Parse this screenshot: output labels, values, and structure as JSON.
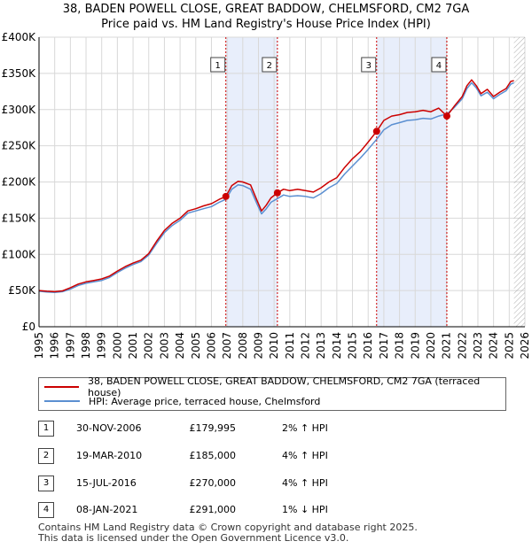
{
  "header": {
    "line1": "38, BADEN POWELL CLOSE, GREAT BADDOW, CHELMSFORD, CM2 7GA",
    "line2": "Price paid vs. HM Land Registry's House Price Index (HPI)"
  },
  "colors": {
    "price_line": "#cc0000",
    "hpi_line": "#5b8fd1",
    "band_fill": "#e8eefb",
    "marker_line": "#cc0000",
    "grid": "#d8d8d8",
    "hatch": "#999999"
  },
  "chart_data": {
    "type": "line",
    "title": "Price paid vs. HM Land Registry's House Price Index (HPI)",
    "xlabel": "",
    "ylabel": "",
    "xlim": [
      1995,
      2026
    ],
    "ylim": [
      0,
      400000
    ],
    "x_ticks": [
      "1995",
      "1996",
      "1997",
      "1998",
      "1999",
      "2000",
      "2001",
      "2002",
      "2003",
      "2004",
      "2005",
      "2006",
      "2007",
      "2008",
      "2009",
      "2010",
      "2011",
      "2012",
      "2013",
      "2014",
      "2015",
      "2016",
      "2017",
      "2018",
      "2019",
      "2020",
      "2021",
      "2022",
      "2023",
      "2024",
      "2025",
      "2026"
    ],
    "y_ticks": [
      {
        "value": 0,
        "label": "£0"
      },
      {
        "value": 50000,
        "label": "£50K"
      },
      {
        "value": 100000,
        "label": "£100K"
      },
      {
        "value": 150000,
        "label": "£150K"
      },
      {
        "value": 200000,
        "label": "£200K"
      },
      {
        "value": 250000,
        "label": "£250K"
      },
      {
        "value": 300000,
        "label": "£300K"
      },
      {
        "value": 350000,
        "label": "£350K"
      },
      {
        "value": 400000,
        "label": "£400K"
      }
    ],
    "shaded_periods": [
      [
        2006.92,
        2010.21
      ],
      [
        2016.54,
        2021.02
      ]
    ],
    "forecast_hatch_from": 2025.3,
    "series": [
      {
        "name": "38, BADEN POWELL CLOSE, GREAT BADDOW, CHELMSFORD, CM2 7GA (terraced house)",
        "color": "#cc0000",
        "points": [
          [
            1995,
            50000
          ],
          [
            1995.5,
            49000
          ],
          [
            1996,
            48500
          ],
          [
            1996.5,
            49500
          ],
          [
            1997,
            54000
          ],
          [
            1997.5,
            59000
          ],
          [
            1998,
            62000
          ],
          [
            1998.5,
            64000
          ],
          [
            1999,
            66000
          ],
          [
            1999.5,
            70000
          ],
          [
            2000,
            77000
          ],
          [
            2000.5,
            83000
          ],
          [
            2001,
            88000
          ],
          [
            2001.5,
            92000
          ],
          [
            2002,
            101000
          ],
          [
            2002.5,
            118000
          ],
          [
            2003,
            133000
          ],
          [
            2003.5,
            143000
          ],
          [
            2004,
            150000
          ],
          [
            2004.5,
            160000
          ],
          [
            2005,
            163000
          ],
          [
            2005.5,
            167000
          ],
          [
            2006,
            170000
          ],
          [
            2006.5,
            176000
          ],
          [
            2006.92,
            179995
          ],
          [
            2007.3,
            195000
          ],
          [
            2007.7,
            201000
          ],
          [
            2008,
            200000
          ],
          [
            2008.5,
            196000
          ],
          [
            2008.9,
            175000
          ],
          [
            2009.2,
            160000
          ],
          [
            2009.5,
            168000
          ],
          [
            2009.8,
            178000
          ],
          [
            2010.21,
            185000
          ],
          [
            2010.6,
            190000
          ],
          [
            2011,
            188000
          ],
          [
            2011.5,
            190000
          ],
          [
            2012,
            188000
          ],
          [
            2012.5,
            186000
          ],
          [
            2013,
            192000
          ],
          [
            2013.5,
            200000
          ],
          [
            2014,
            206000
          ],
          [
            2014.5,
            220000
          ],
          [
            2015,
            232000
          ],
          [
            2015.5,
            242000
          ],
          [
            2016,
            255000
          ],
          [
            2016.54,
            270000
          ],
          [
            2017,
            285000
          ],
          [
            2017.5,
            291000
          ],
          [
            2018,
            293000
          ],
          [
            2018.5,
            296000
          ],
          [
            2019,
            297000
          ],
          [
            2019.5,
            299000
          ],
          [
            2020,
            297000
          ],
          [
            2020.5,
            302000
          ],
          [
            2021.02,
            291000
          ],
          [
            2021.5,
            305000
          ],
          [
            2022,
            318000
          ],
          [
            2022.3,
            333000
          ],
          [
            2022.6,
            341000
          ],
          [
            2022.9,
            333000
          ],
          [
            2023.2,
            322000
          ],
          [
            2023.6,
            328000
          ],
          [
            2024,
            318000
          ],
          [
            2024.4,
            324000
          ],
          [
            2024.8,
            329000
          ],
          [
            2025.1,
            339000
          ],
          [
            2025.3,
            340000
          ]
        ]
      },
      {
        "name": "HPI: Average price, terraced house, Chelmsford",
        "color": "#5b8fd1",
        "points": [
          [
            1995,
            49000
          ],
          [
            1995.5,
            48000
          ],
          [
            1996,
            47500
          ],
          [
            1996.5,
            48500
          ],
          [
            1997,
            52000
          ],
          [
            1997.5,
            57000
          ],
          [
            1998,
            60000
          ],
          [
            1998.5,
            62000
          ],
          [
            1999,
            64000
          ],
          [
            1999.5,
            68000
          ],
          [
            2000,
            75000
          ],
          [
            2000.5,
            81000
          ],
          [
            2001,
            86000
          ],
          [
            2001.5,
            90000
          ],
          [
            2002,
            99000
          ],
          [
            2002.5,
            115000
          ],
          [
            2003,
            130000
          ],
          [
            2003.5,
            140000
          ],
          [
            2004,
            147000
          ],
          [
            2004.5,
            157000
          ],
          [
            2005,
            160000
          ],
          [
            2005.5,
            163000
          ],
          [
            2006,
            166000
          ],
          [
            2006.5,
            172000
          ],
          [
            2006.92,
            176000
          ],
          [
            2007.3,
            190000
          ],
          [
            2007.7,
            196000
          ],
          [
            2008,
            195000
          ],
          [
            2008.5,
            190000
          ],
          [
            2008.9,
            170000
          ],
          [
            2009.2,
            156000
          ],
          [
            2009.5,
            163000
          ],
          [
            2009.8,
            172000
          ],
          [
            2010.21,
            177000
          ],
          [
            2010.6,
            182000
          ],
          [
            2011,
            180000
          ],
          [
            2011.5,
            181000
          ],
          [
            2012,
            180000
          ],
          [
            2012.5,
            178000
          ],
          [
            2013,
            184000
          ],
          [
            2013.5,
            192000
          ],
          [
            2014,
            198000
          ],
          [
            2014.5,
            211000
          ],
          [
            2015,
            222000
          ],
          [
            2015.5,
            233000
          ],
          [
            2016,
            245000
          ],
          [
            2016.54,
            259000
          ],
          [
            2017,
            272000
          ],
          [
            2017.5,
            279000
          ],
          [
            2018,
            282000
          ],
          [
            2018.5,
            285000
          ],
          [
            2019,
            286000
          ],
          [
            2019.5,
            288000
          ],
          [
            2020,
            287000
          ],
          [
            2020.5,
            291000
          ],
          [
            2021.02,
            294000
          ],
          [
            2021.5,
            303000
          ],
          [
            2022,
            315000
          ],
          [
            2022.3,
            329000
          ],
          [
            2022.6,
            337000
          ],
          [
            2022.9,
            330000
          ],
          [
            2023.2,
            319000
          ],
          [
            2023.6,
            324000
          ],
          [
            2024,
            315000
          ],
          [
            2024.4,
            321000
          ],
          [
            2024.8,
            326000
          ],
          [
            2025.1,
            335000
          ],
          [
            2025.3,
            337000
          ]
        ]
      }
    ],
    "markers": [
      {
        "label": "1",
        "x": 2006.92,
        "y": 179995
      },
      {
        "label": "2",
        "x": 2010.21,
        "y": 185000
      },
      {
        "label": "3",
        "x": 2016.54,
        "y": 270000
      },
      {
        "label": "4",
        "x": 2021.02,
        "y": 291000
      }
    ]
  },
  "legend": {
    "price_label": "38, BADEN POWELL CLOSE, GREAT BADDOW, CHELMSFORD, CM2 7GA (terraced house)",
    "hpi_label": "HPI: Average price, terraced house, Chelmsford"
  },
  "transactions": [
    {
      "num": "1",
      "date": "30-NOV-2006",
      "price": "£179,995",
      "hpi": "2% ↑ HPI"
    },
    {
      "num": "2",
      "date": "19-MAR-2010",
      "price": "£185,000",
      "hpi": "4% ↑ HPI"
    },
    {
      "num": "3",
      "date": "15-JUL-2016",
      "price": "£270,000",
      "hpi": "4% ↑ HPI"
    },
    {
      "num": "4",
      "date": "08-JAN-2021",
      "price": "£291,000",
      "hpi": "1% ↓ HPI"
    }
  ],
  "footer": {
    "line1": "Contains HM Land Registry data © Crown copyright and database right 2025.",
    "line2": "This data is licensed under the Open Government Licence v3.0."
  }
}
